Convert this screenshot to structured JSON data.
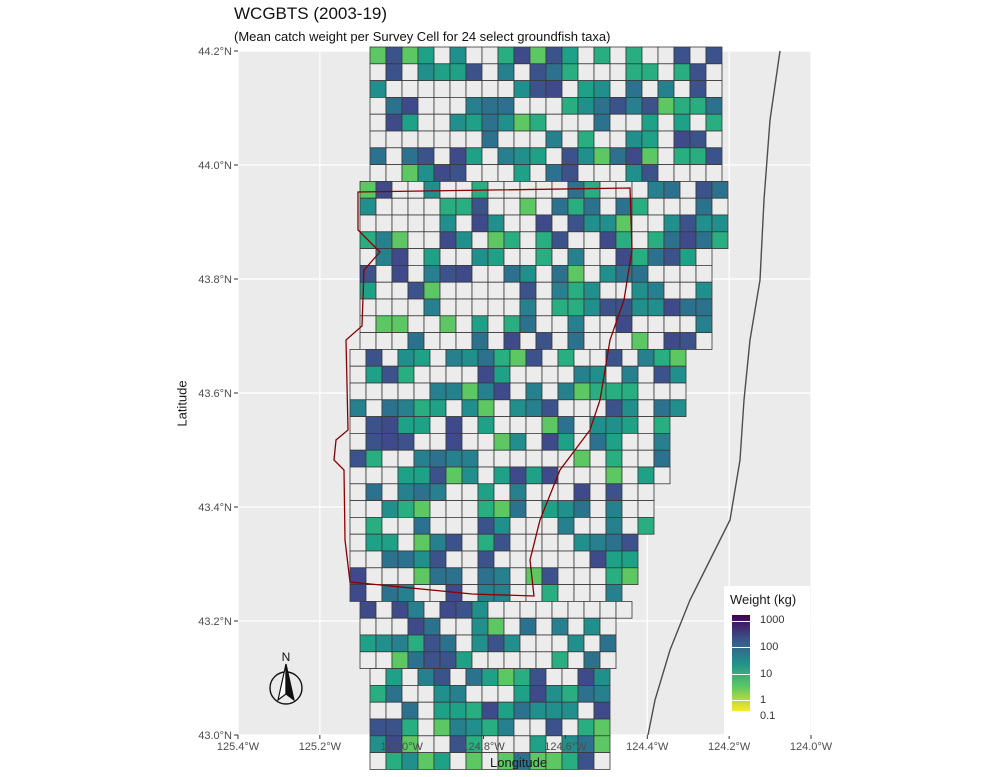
{
  "title": "WCGBTS (2003-19)",
  "subtitle": "(Mean catch weight per Survey Cell for 24 select groundfish taxa)",
  "axes": {
    "xlabel": "Longitude",
    "ylabel": "Latitude",
    "x_ticks": [
      "125.4°W",
      "125.2°W",
      "125.0°W",
      "124.8°W",
      "124.6°W",
      "124.4°W",
      "124.2°W",
      "124.0°W"
    ],
    "y_ticks": [
      "44.2°N",
      "44.0°N",
      "43.8°N",
      "43.6°N",
      "43.4°N",
      "43.2°N",
      "43.0°N"
    ],
    "xlim": [
      -125.4,
      -124.0
    ],
    "ylim": [
      43.0,
      44.2
    ]
  },
  "legend": {
    "title": "Weight (kg)",
    "labels": [
      "1000",
      "100",
      "10",
      "1",
      "0.1"
    ],
    "position": "bottom-right",
    "scale": "log10 viridis"
  },
  "north_arrow": {
    "label": "N"
  },
  "colors": {
    "panel": "#ebebeb",
    "grid": "#ffffff",
    "cell_empty": "#ececec",
    "cell_border": "#3a3a3a",
    "boundary": "#8b0000",
    "coast": "#4d4d4d"
  }
}
